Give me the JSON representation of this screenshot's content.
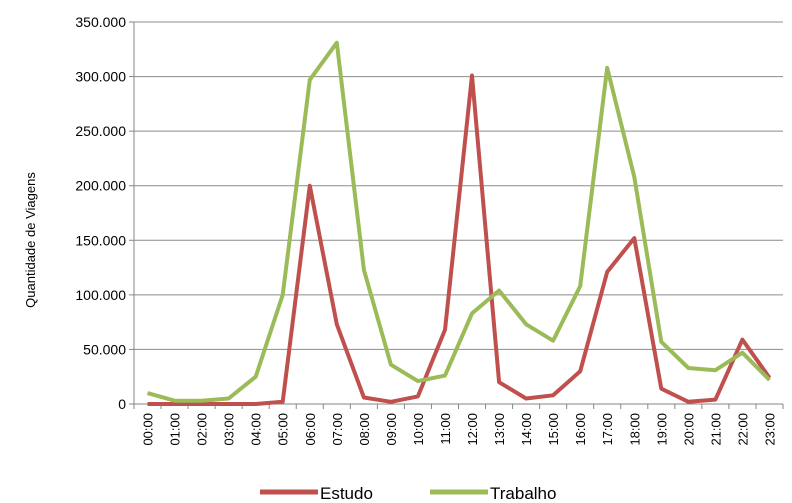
{
  "chart_data": {
    "type": "line",
    "title": "",
    "xlabel": "",
    "ylabel": "Quantidade de Viagens",
    "ylim": [
      0,
      350000
    ],
    "yticks": [
      0,
      50000,
      100000,
      150000,
      200000,
      250000,
      300000,
      350000
    ],
    "ytick_labels": [
      "0",
      "50.000",
      "100.000",
      "150.000",
      "200.000",
      "250.000",
      "300.000",
      "350.000"
    ],
    "grid": true,
    "legend_position": "bottom",
    "categories": [
      "00:00",
      "01:00",
      "02:00",
      "03:00",
      "04:00",
      "05:00",
      "06:00",
      "07:00",
      "08:00",
      "09:00",
      "10:00",
      "11:00",
      "12:00",
      "13:00",
      "14:00",
      "15:00",
      "16:00",
      "17:00",
      "18:00",
      "19:00",
      "20:00",
      "21:00",
      "22:00",
      "23:00"
    ],
    "series": [
      {
        "name": "Estudo",
        "color": "#c0504d",
        "values": [
          0,
          0,
          0,
          0,
          0,
          2000,
          200000,
          73000,
          6000,
          2000,
          7000,
          68000,
          301000,
          20000,
          5000,
          8000,
          30000,
          121000,
          152000,
          14000,
          2000,
          4000,
          59000,
          24000
        ]
      },
      {
        "name": "Trabalho",
        "color": "#9bbb59",
        "values": [
          10000,
          3000,
          3000,
          5000,
          25000,
          100000,
          297000,
          331000,
          123000,
          36000,
          21000,
          26000,
          83000,
          104000,
          73000,
          58000,
          108000,
          308000,
          208000,
          57000,
          33000,
          31000,
          47000,
          22000
        ]
      }
    ]
  }
}
